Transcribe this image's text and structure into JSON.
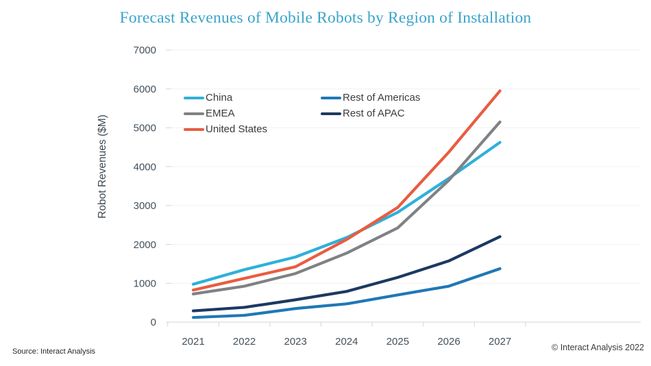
{
  "page": {
    "title": "Forecast Revenues of Mobile Robots by Region of Installation",
    "source_note": "Source: Interact Analysis",
    "copyright": "© Interact Analysis 2022"
  },
  "chart_data": {
    "type": "line",
    "title": "Forecast Revenues of Mobile Robots by Region of Installation",
    "xlabel": "",
    "ylabel": "Robot Revenues ($M)",
    "x": [
      2021,
      2022,
      2023,
      2024,
      2025,
      2026,
      2027
    ],
    "ylim": [
      0,
      7000
    ],
    "ytick_step": 1000,
    "grid": true,
    "legend_position": "top-left-inside",
    "series": [
      {
        "name": "China",
        "color": "#2FB0D9",
        "values": [
          975,
          1350,
          1675,
          2175,
          2825,
          3700,
          4625
        ]
      },
      {
        "name": "EMEA",
        "color": "#7F8285",
        "values": [
          725,
          925,
          1250,
          1775,
          2425,
          3650,
          5150
        ]
      },
      {
        "name": "United States",
        "color": "#E95C41",
        "values": [
          825,
          1125,
          1425,
          2125,
          2950,
          4375,
          5950
        ]
      },
      {
        "name": "Rest of Americas",
        "color": "#1F78B5",
        "values": [
          120,
          175,
          350,
          470,
          700,
          925,
          1375
        ]
      },
      {
        "name": "Rest of APAC",
        "color": "#1C3961",
        "values": [
          290,
          380,
          575,
          790,
          1150,
          1575,
          2200
        ]
      }
    ],
    "legend_order": [
      "China",
      "Rest of Americas",
      "EMEA",
      "Rest of APAC",
      "United States"
    ]
  },
  "colors": {
    "title_text": "#3AA4CA",
    "axis_text": "#44505A",
    "gridline": "#F0F1F2",
    "axis_line": "#D2D5D8"
  }
}
